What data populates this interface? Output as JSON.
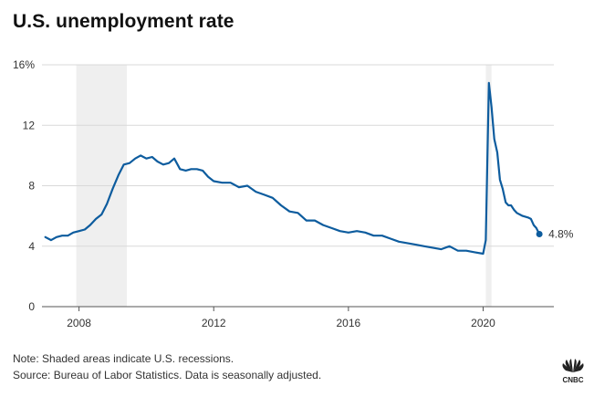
{
  "header": {
    "title": "U.S. unemployment rate"
  },
  "footer": {
    "note": "Note: Shaded areas indicate U.S. recessions.",
    "source": "Source: Bureau of Labor Statistics. Data is seasonally adjusted."
  },
  "brand": {
    "logo_text": "CNBC"
  },
  "colors": {
    "line": "#0d5c9e",
    "recession_shade": "#efefef",
    "gridline": "#d9d9d9",
    "axis_text": "#333333"
  },
  "chart_data": {
    "type": "line",
    "title": "U.S. unemployment rate",
    "xlabel": "",
    "ylabel": "",
    "xlim": [
      2006.9,
      2022.1
    ],
    "ylim": [
      0,
      16
    ],
    "x_ticks": [
      2008,
      2012,
      2016,
      2020
    ],
    "x_tick_labels": [
      "2008",
      "2012",
      "2016",
      "2020"
    ],
    "y_ticks": [
      0,
      4,
      8,
      12,
      16
    ],
    "y_tick_labels": [
      "0",
      "4",
      "8",
      "12",
      "16%"
    ],
    "grid": "horizontal",
    "recessions": [
      {
        "start": 2007.92,
        "end": 2009.42
      },
      {
        "start": 2020.08,
        "end": 2020.25
      }
    ],
    "end_label": "4.8%",
    "series": [
      {
        "x": [
          2007.0,
          2007.17,
          2007.33,
          2007.5,
          2007.67,
          2007.83,
          2008.0,
          2008.17,
          2008.33,
          2008.5,
          2008.67,
          2008.83,
          2009.0,
          2009.17,
          2009.33,
          2009.5,
          2009.67,
          2009.83,
          2010.0,
          2010.17,
          2010.33,
          2010.5,
          2010.67,
          2010.83,
          2011.0,
          2011.17,
          2011.33,
          2011.5,
          2011.67,
          2011.83,
          2012.0,
          2012.25,
          2012.5,
          2012.75,
          2013.0,
          2013.25,
          2013.5,
          2013.75,
          2014.0,
          2014.25,
          2014.5,
          2014.75,
          2015.0,
          2015.25,
          2015.5,
          2015.75,
          2016.0,
          2016.25,
          2016.5,
          2016.75,
          2017.0,
          2017.25,
          2017.5,
          2017.75,
          2018.0,
          2018.25,
          2018.5,
          2018.75,
          2019.0,
          2019.25,
          2019.5,
          2019.75,
          2020.0,
          2020.08,
          2020.17,
          2020.25,
          2020.33,
          2020.42,
          2020.5,
          2020.58,
          2020.67,
          2020.75,
          2020.83,
          2020.92,
          2021.0,
          2021.17,
          2021.33,
          2021.42,
          2021.5,
          2021.58,
          2021.67
        ],
        "values": [
          4.6,
          4.4,
          4.6,
          4.7,
          4.7,
          4.9,
          5.0,
          5.1,
          5.4,
          5.8,
          6.1,
          6.8,
          7.8,
          8.7,
          9.4,
          9.5,
          9.8,
          10.0,
          9.8,
          9.9,
          9.6,
          9.4,
          9.5,
          9.8,
          9.1,
          9.0,
          9.1,
          9.1,
          9.0,
          8.6,
          8.3,
          8.2,
          8.2,
          7.9,
          8.0,
          7.6,
          7.4,
          7.2,
          6.7,
          6.3,
          6.2,
          5.7,
          5.7,
          5.4,
          5.2,
          5.0,
          4.9,
          5.0,
          4.9,
          4.7,
          4.7,
          4.5,
          4.3,
          4.2,
          4.1,
          4.0,
          3.9,
          3.8,
          4.0,
          3.7,
          3.7,
          3.6,
          3.5,
          4.4,
          14.8,
          13.2,
          11.1,
          10.2,
          8.4,
          7.8,
          6.9,
          6.7,
          6.7,
          6.4,
          6.2,
          6.0,
          5.9,
          5.8,
          5.4,
          5.2,
          4.8
        ]
      }
    ]
  }
}
